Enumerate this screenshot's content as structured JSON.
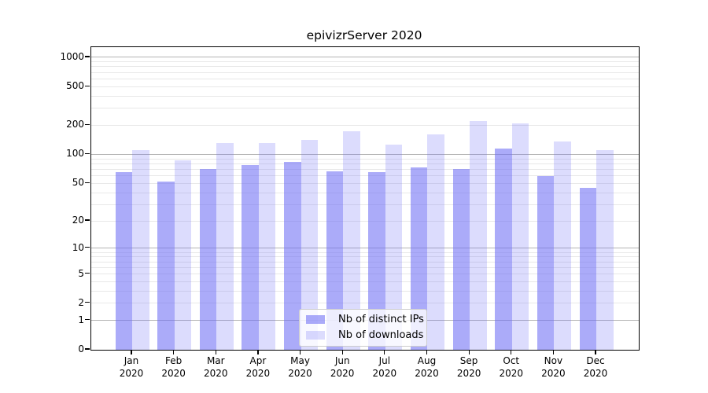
{
  "chart_data": {
    "type": "bar",
    "title": "epivizrServer 2020",
    "categories_month": [
      "Jan",
      "Feb",
      "Mar",
      "Apr",
      "May",
      "Jun",
      "Jul",
      "Aug",
      "Sep",
      "Oct",
      "Nov",
      "Dec"
    ],
    "categories_year": "2020",
    "series": [
      {
        "name": "Nb of distinct IPs",
        "color": "rgba(110,110,245,0.58)",
        "values": [
          66,
          52,
          70,
          78,
          83,
          67,
          66,
          73,
          70,
          115,
          60,
          45
        ]
      },
      {
        "name": "Nb of downloads",
        "color": "rgba(110,110,245,0.24)",
        "values": [
          110,
          87,
          132,
          132,
          142,
          172,
          126,
          161,
          220,
          208,
          137,
          111
        ]
      }
    ],
    "y_axis": {
      "scale": "log1p",
      "tick_labels": [
        "1000",
        "500",
        "200",
        "100",
        "50",
        "20",
        "10",
        "5",
        "2",
        "1",
        "0"
      ],
      "tick_values": [
        1000,
        500,
        200,
        100,
        50,
        20,
        10,
        5,
        2,
        1,
        0
      ],
      "major_grid_values": [
        1,
        10,
        100,
        1000
      ],
      "range_min": 0,
      "range_max": 1285
    },
    "grid": {
      "major_color": "#b3b3b3",
      "minor_color": "#e8e8e8"
    },
    "legend": {
      "position": "bottom-center"
    },
    "colors": {
      "spine": "#000000",
      "background": "#ffffff"
    }
  }
}
